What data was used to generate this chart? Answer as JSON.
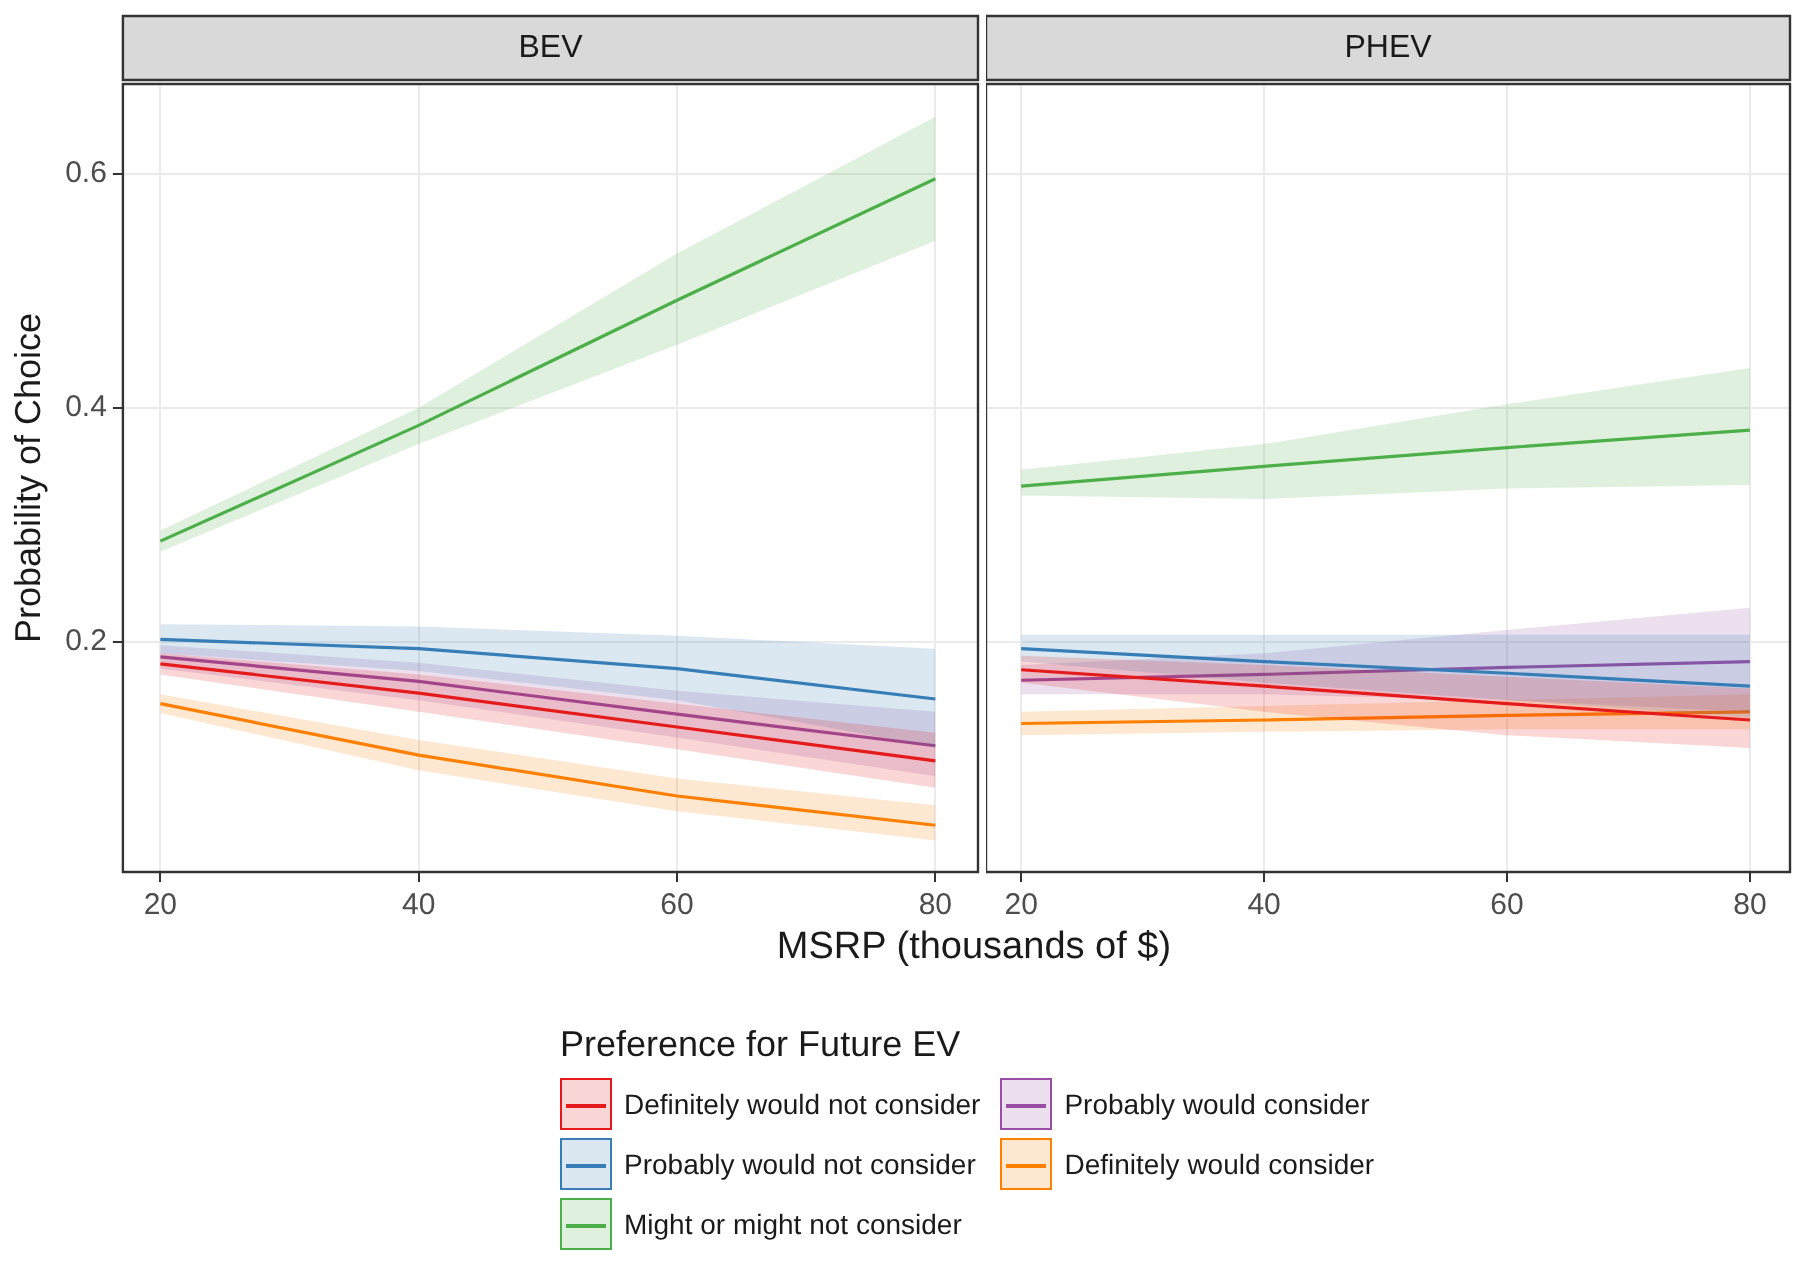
{
  "chart_data": [
    {
      "type": "line",
      "title": "BEV",
      "xlabel": "MSRP (thousands of $)",
      "ylabel": "Probability of Choice",
      "legend_title": "Preference for Future EV",
      "legend": "bottom",
      "grid": true,
      "xlim": [
        17.1,
        83.3
      ],
      "xticks": [
        20,
        40,
        60,
        80
      ],
      "ylim": [
        0.003,
        0.677
      ],
      "yticks": [
        0.2,
        0.4,
        0.6
      ],
      "x": [
        20,
        40,
        60,
        80
      ],
      "series": [
        {
          "name": "Definitely would not consider",
          "color": "#e41a1c",
          "values": [
            0.181,
            0.156,
            0.127,
            0.098
          ],
          "lower": [
            0.172,
            0.14,
            0.108,
            0.075
          ],
          "upper": [
            0.19,
            0.172,
            0.147,
            0.122
          ]
        },
        {
          "name": "Probably would not consider",
          "color": "#377eb8",
          "values": [
            0.202,
            0.194,
            0.177,
            0.151
          ],
          "lower": [
            0.19,
            0.175,
            0.15,
            0.11
          ],
          "upper": [
            0.215,
            0.213,
            0.205,
            0.194
          ]
        },
        {
          "name": "Might or might not consider",
          "color": "#4daf4a",
          "values": [
            0.286,
            0.385,
            0.492,
            0.596
          ],
          "lower": [
            0.277,
            0.369,
            0.454,
            0.543
          ],
          "upper": [
            0.295,
            0.4,
            0.532,
            0.649
          ]
        },
        {
          "name": "Probably would consider",
          "color": "#984ea3",
          "values": [
            0.187,
            0.166,
            0.138,
            0.111
          ],
          "lower": [
            0.177,
            0.15,
            0.118,
            0.085
          ],
          "upper": [
            0.197,
            0.182,
            0.158,
            0.14
          ]
        },
        {
          "name": "Definitely would consider",
          "color": "#ff7f00",
          "values": [
            0.147,
            0.103,
            0.068,
            0.043
          ],
          "lower": [
            0.139,
            0.09,
            0.055,
            0.03
          ],
          "upper": [
            0.155,
            0.116,
            0.083,
            0.06
          ]
        }
      ]
    },
    {
      "type": "line",
      "title": "PHEV",
      "grid": true,
      "tick_labels": "x",
      "xlim": [
        17.1,
        83.3
      ],
      "xticks": [
        20,
        40,
        60,
        80
      ],
      "ylim": [
        0.003,
        0.677
      ],
      "yticks": [
        0.2,
        0.4,
        0.6
      ],
      "x": [
        20,
        40,
        60,
        80
      ],
      "series": [
        {
          "color": "#e41a1c",
          "values": [
            0.176,
            0.162,
            0.147,
            0.133
          ],
          "lower": [
            0.165,
            0.14,
            0.12,
            0.109
          ],
          "upper": [
            0.188,
            0.18,
            0.17,
            0.16
          ]
        },
        {
          "color": "#377eb8",
          "values": [
            0.194,
            0.183,
            0.173,
            0.162
          ],
          "lower": [
            0.183,
            0.165,
            0.15,
            0.135
          ],
          "upper": [
            0.206,
            0.206,
            0.206,
            0.206
          ]
        },
        {
          "color": "#4daf4a",
          "values": [
            0.333,
            0.35,
            0.366,
            0.381
          ],
          "lower": [
            0.325,
            0.322,
            0.331,
            0.334
          ],
          "upper": [
            0.347,
            0.369,
            0.403,
            0.434
          ]
        },
        {
          "color": "#984ea3",
          "values": [
            0.167,
            0.172,
            0.178,
            0.183
          ],
          "lower": [
            0.155,
            0.155,
            0.15,
            0.14
          ],
          "upper": [
            0.18,
            0.19,
            0.21,
            0.229
          ]
        },
        {
          "color": "#ff7f00",
          "values": [
            0.13,
            0.133,
            0.137,
            0.14
          ],
          "lower": [
            0.12,
            0.123,
            0.125,
            0.125
          ],
          "upper": [
            0.14,
            0.145,
            0.15,
            0.155
          ]
        }
      ]
    }
  ]
}
